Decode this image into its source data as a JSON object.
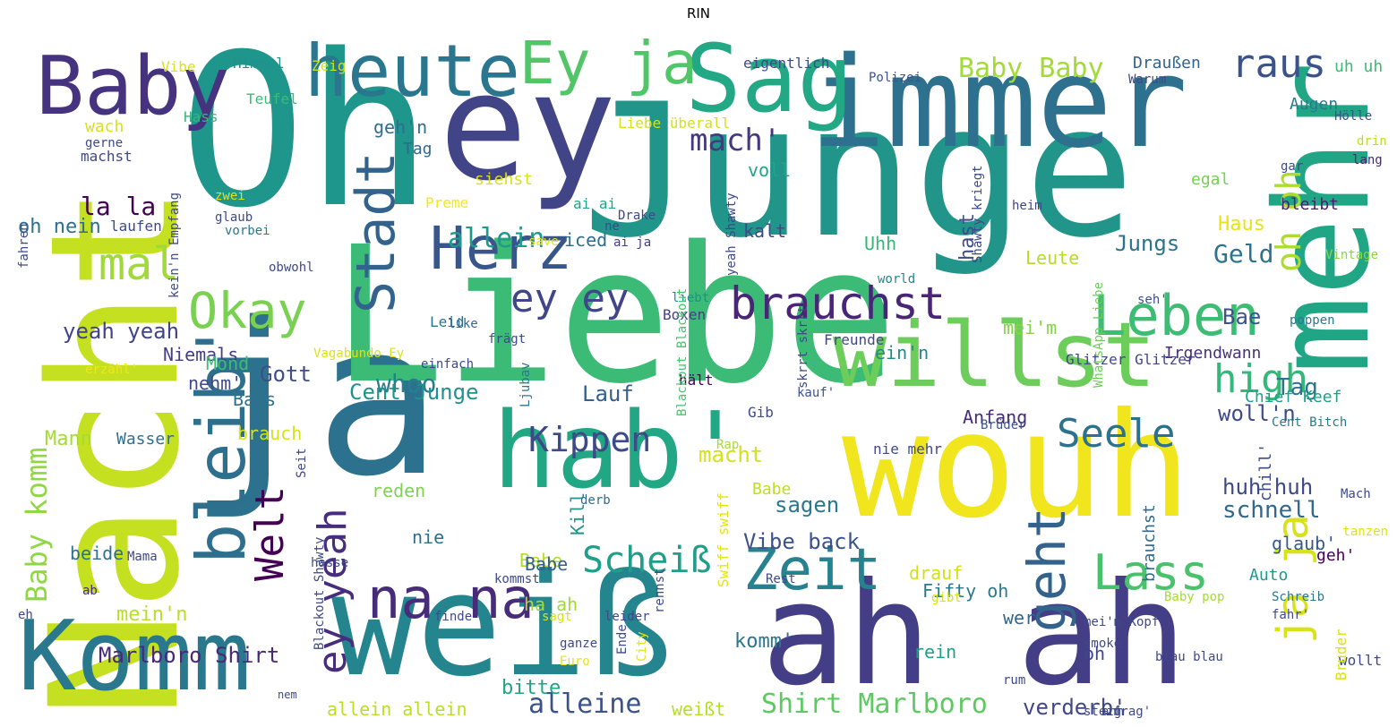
{
  "title": "RIN",
  "words": [
    {
      "text": "Oh",
      "color": "#1f968b"
    },
    {
      "text": "Junge",
      "color": "#22958b"
    },
    {
      "text": "ja",
      "color": "#2c728e"
    },
    {
      "text": "Liebe",
      "color": "#3bbb75"
    },
    {
      "text": "Nacht",
      "color": "#c5e021"
    },
    {
      "text": "ey",
      "color": "#414487"
    },
    {
      "text": "weiß",
      "color": "#25858e"
    },
    {
      "text": "ah ah",
      "color": "#433e85"
    },
    {
      "text": "wouh",
      "color": "#f1e51d"
    },
    {
      "text": "immer",
      "color": "#2d718e"
    },
    {
      "text": "mehr",
      "color": "#21a685"
    },
    {
      "text": "hab'",
      "color": "#22a785"
    },
    {
      "text": "willst",
      "color": "#6ccd5a"
    },
    {
      "text": "Komm",
      "color": "#2a788e"
    },
    {
      "text": "Sag",
      "color": "#22a884"
    },
    {
      "text": "heute",
      "color": "#2a768e"
    },
    {
      "text": "Baby",
      "color": "#46337f"
    },
    {
      "text": "Ey ja",
      "color": "#52c569"
    },
    {
      "text": "bleib'",
      "color": "#2e6f8e"
    },
    {
      "text": "Herz",
      "color": "#39568c"
    },
    {
      "text": "Leben",
      "color": "#3dbc74"
    },
    {
      "text": "Zeit",
      "color": "#26828e"
    },
    {
      "text": "na na",
      "color": "#472c7a"
    },
    {
      "text": "Okay",
      "color": "#7ad151"
    },
    {
      "text": "Stadt",
      "color": "#33638d"
    },
    {
      "text": "geht",
      "color": "#33638d"
    },
    {
      "text": "brauchst",
      "color": "#482576"
    },
    {
      "text": "mal",
      "color": "#a0da39"
    },
    {
      "text": "Welt",
      "color": "#440154"
    },
    {
      "text": "Seele",
      "color": "#2c728e"
    },
    {
      "text": "Lass",
      "color": "#4ac16d"
    },
    {
      "text": "ey yeah",
      "color": "#472d7b"
    },
    {
      "text": "Scheiß",
      "color": "#1f9e89"
    },
    {
      "text": "ja ja",
      "color": "#d8e219"
    },
    {
      "text": "Kippen",
      "color": "#3e4989"
    },
    {
      "text": "raus",
      "color": "#3b528b"
    },
    {
      "text": "ey ey",
      "color": "#404688"
    },
    {
      "text": "oh oh",
      "color": "#addc30"
    },
    {
      "text": "Baby komm",
      "color": "#8fd744"
    },
    {
      "text": "high",
      "color": "#35b779"
    },
    {
      "text": "mach'",
      "color": "#453882"
    },
    {
      "text": "Baby Baby",
      "color": "#a2da37"
    },
    {
      "text": "Shirt Marlboro",
      "color": "#5ec962"
    },
    {
      "text": "Marlboro Shirt",
      "color": "#482878"
    },
    {
      "text": "allein",
      "color": "#1f9a8a"
    },
    {
      "text": "alleine",
      "color": "#3b528b"
    },
    {
      "text": "Geld",
      "color": "#2c738e"
    },
    {
      "text": "whoo",
      "color": "#277f8e"
    },
    {
      "text": "Tag",
      "color": "#2a768e"
    },
    {
      "text": "Vibe back",
      "color": "#3b528b"
    },
    {
      "text": "huh huh",
      "color": "#3e4989"
    },
    {
      "text": "schnell",
      "color": "#31688e"
    },
    {
      "text": "sagen",
      "color": "#2a788e"
    },
    {
      "text": "la la",
      "color": "#440154"
    },
    {
      "text": "Jungs",
      "color": "#2b748e"
    },
    {
      "text": "Bae",
      "color": "#3b528b"
    },
    {
      "text": "verderb'",
      "color": "#3f4788"
    },
    {
      "text": "woll'n",
      "color": "#3e4a89"
    },
    {
      "text": "Lauf",
      "color": "#355f8d"
    },
    {
      "text": "Gott",
      "color": "#3d4e8a"
    },
    {
      "text": "yeah yeah",
      "color": "#414487"
    },
    {
      "text": "Cent Junge",
      "color": "#21918c"
    },
    {
      "text": "mein'n",
      "color": "#b8de29"
    },
    {
      "text": "Mann",
      "color": "#a5db36"
    },
    {
      "text": "macht",
      "color": "#d2e21b"
    },
    {
      "text": "bitte",
      "color": "#20a386"
    },
    {
      "text": "komm'",
      "color": "#2a768e"
    },
    {
      "text": "Babe",
      "color": "#b0dd2f"
    },
    {
      "text": "brauch",
      "color": "#d5e21a"
    },
    {
      "text": "nehm'",
      "color": "#3e4a89"
    },
    {
      "text": "Niemals",
      "color": "#433e85"
    },
    {
      "text": "Mond",
      "color": "#3bbb75"
    },
    {
      "text": "Bass",
      "color": "#2c728e"
    },
    {
      "text": "hast",
      "color": "#3e4a89"
    },
    {
      "text": "Haus",
      "color": "#e5e419"
    },
    {
      "text": "Leute",
      "color": "#b5de2b"
    },
    {
      "text": "Uhh",
      "color": "#35b779"
    },
    {
      "text": "kalt",
      "color": "#3e4989"
    },
    {
      "text": "voll",
      "color": "#20a486"
    },
    {
      "text": "iced",
      "color": "#2e6e8e"
    },
    {
      "text": "ein'n",
      "color": "#24868e"
    },
    {
      "text": "mei'm",
      "color": "#84d44b"
    },
    {
      "text": "Anfang",
      "color": "#472c7a"
    },
    {
      "text": "Kill",
      "color": "#1f958b"
    },
    {
      "text": "drauf",
      "color": "#d0e11c"
    },
    {
      "text": "Fifty oh",
      "color": "#297a8e"
    },
    {
      "text": "wer",
      "color": "#31668e"
    },
    {
      "text": "rein",
      "color": "#1fa088"
    },
    {
      "text": "oh",
      "color": "#404688"
    },
    {
      "text": "nie",
      "color": "#2e6f8e"
    },
    {
      "text": "reden",
      "color": "#81d34d"
    },
    {
      "text": "beide",
      "color": "#2d718e"
    },
    {
      "text": "Babe",
      "color": "#34608d"
    },
    {
      "text": "ha ah",
      "color": "#a2da37"
    },
    {
      "text": "allein allein",
      "color": "#bade28"
    },
    {
      "text": "weißt",
      "color": "#b5de2b"
    },
    {
      "text": "Wasser",
      "color": "#2d718e"
    },
    {
      "text": "Augen",
      "color": "#29798e"
    },
    {
      "text": "Draußen",
      "color": "#32648e"
    },
    {
      "text": "Tag",
      "color": "#31688e"
    },
    {
      "text": "geh'n",
      "color": "#2e6e8e"
    },
    {
      "text": "siehst",
      "color": "#d8e219"
    },
    {
      "text": "oh nein",
      "color": "#2e6f8e"
    },
    {
      "text": "wach",
      "color": "#d8e219"
    },
    {
      "text": "uh uh",
      "color": "#3bbb75"
    },
    {
      "text": "egal",
      "color": "#75d054"
    },
    {
      "text": "bleibt",
      "color": "#481f70"
    },
    {
      "text": "glaub'",
      "color": "#38588c"
    },
    {
      "text": "geh'",
      "color": "#440154"
    },
    {
      "text": "Auto",
      "color": "#1e9b8a"
    },
    {
      "text": "chill'",
      "color": "#3e4c8a"
    },
    {
      "text": "brauchst",
      "color": "#31688e"
    },
    {
      "text": "Babe",
      "color": "#bddf26"
    },
    {
      "text": "Chief Keef",
      "color": "#1fa188"
    },
    {
      "text": "Freunde",
      "color": "#3f4889"
    },
    {
      "text": "Glitzer Glitzer",
      "color": "#3f4788"
    },
    {
      "text": "Irgendwann",
      "color": "#46327e"
    },
    {
      "text": "Swiff swiff",
      "color": "#e2e418"
    },
    {
      "text": "Gib",
      "color": "#3e4989"
    },
    {
      "text": "Brüder",
      "color": "#3b528b"
    },
    {
      "text": "nie mehr",
      "color": "#3e4a89"
    },
    {
      "text": "kauf'",
      "color": "#3b528b"
    },
    {
      "text": "hält",
      "color": "#440154"
    },
    {
      "text": "Rap",
      "color": "#a8db34"
    },
    {
      "text": "derb",
      "color": "#31688e"
    },
    {
      "text": "einfach",
      "color": "#3e4989"
    },
    {
      "text": "Leid",
      "color": "#2d718e"
    },
    {
      "text": "like",
      "color": "#31688e"
    },
    {
      "text": "Boxen",
      "color": "#424086"
    },
    {
      "text": "liebt",
      "color": "#218f8d"
    },
    {
      "text": "seh'",
      "color": "#3b528b"
    },
    {
      "text": "poppen",
      "color": "#2a788e"
    },
    {
      "text": "Vintage",
      "color": "#8bd646"
    },
    {
      "text": "world",
      "color": "#24878e"
    },
    {
      "text": "heim",
      "color": "#3f4788"
    },
    {
      "text": "lang",
      "color": "#482475"
    },
    {
      "text": "drin",
      "color": "#b8de29"
    },
    {
      "text": "gar",
      "color": "#3e4989"
    },
    {
      "text": "Hölle",
      "color": "#3b528b"
    },
    {
      "text": "Warum",
      "color": "#3f4788"
    },
    {
      "text": "Polizei",
      "color": "#3b528b"
    },
    {
      "text": "eigentlich",
      "color": "#3e4989"
    },
    {
      "text": "Liebe überall",
      "color": "#d2e21b"
    },
    {
      "text": "Teufel",
      "color": "#3bbb75"
    },
    {
      "text": "Hass",
      "color": "#35b779"
    },
    {
      "text": "Himmel",
      "color": "#21918c"
    },
    {
      "text": "Zeig",
      "color": "#c8e020"
    },
    {
      "text": "Vibe",
      "color": "#d8e219"
    },
    {
      "text": "machst",
      "color": "#3e4989"
    },
    {
      "text": "gerne",
      "color": "#3e4a89"
    },
    {
      "text": "zwei",
      "color": "#e1e319"
    },
    {
      "text": "glaub",
      "color": "#3e4989"
    },
    {
      "text": "laufen",
      "color": "#3e4989"
    },
    {
      "text": "vorbei",
      "color": "#2a788e"
    },
    {
      "text": "Preme",
      "color": "#f4e61e"
    },
    {
      "text": "ai ai",
      "color": "#20a486"
    },
    {
      "text": "Drake",
      "color": "#3e4989"
    },
    {
      "text": "ne",
      "color": "#3e4989"
    },
    {
      "text": "ai ja",
      "color": "#433e85"
    },
    {
      "text": "save",
      "color": "#e2e418"
    },
    {
      "text": "obwohl",
      "color": "#3e4989"
    },
    {
      "text": "frägt",
      "color": "#3e4989"
    },
    {
      "text": "erzähl'",
      "color": "#f1e51d"
    },
    {
      "text": "Ljubav",
      "color": "#29798e"
    },
    {
      "text": "hasse",
      "color": "#3e4989"
    },
    {
      "text": "Mama",
      "color": "#3e4989"
    },
    {
      "text": "ab",
      "color": "#482878"
    },
    {
      "text": "finde",
      "color": "#3e4989"
    },
    {
      "text": "sagt",
      "color": "#d8e219"
    },
    {
      "text": "leider",
      "color": "#3e4989"
    },
    {
      "text": "ganze",
      "color": "#3e4989"
    },
    {
      "text": "Euro",
      "color": "#e5e419"
    },
    {
      "text": "City",
      "color": "#e2e418"
    },
    {
      "text": "Ende",
      "color": "#3e4989"
    },
    {
      "text": "gibt",
      "color": "#d2e21b"
    },
    {
      "text": "mei'm Kopf",
      "color": "#3e4989"
    },
    {
      "text": "smoke",
      "color": "#3e4989"
    },
    {
      "text": "Baby pop",
      "color": "#a5db36"
    },
    {
      "text": "blau blau",
      "color": "#3e4989"
    },
    {
      "text": "rum",
      "color": "#3e4989"
    },
    {
      "text": "steig",
      "color": "#3e4989"
    },
    {
      "text": "ahh",
      "color": "#3e4989"
    },
    {
      "text": "frag'",
      "color": "#3e4989"
    },
    {
      "text": "wollt",
      "color": "#3e4989"
    },
    {
      "text": "Bruder",
      "color": "#d8e219"
    },
    {
      "text": "fahr'",
      "color": "#3e4989"
    },
    {
      "text": "Schreib",
      "color": "#2a788e"
    },
    {
      "text": "tanzen",
      "color": "#dde318"
    },
    {
      "text": "Mach",
      "color": "#3e4989"
    },
    {
      "text": "Cent Bitch",
      "color": "#29798e"
    },
    {
      "text": "Rest",
      "color": "#3e4989"
    },
    {
      "text": "kommst",
      "color": "#3e4989"
    },
    {
      "text": "eh",
      "color": "#3e4989"
    },
    {
      "text": "fahren",
      "color": "#3e4989"
    },
    {
      "text": "kein'n Empfang",
      "color": "#3e4989"
    },
    {
      "text": "Seit",
      "color": "#3e4989"
    },
    {
      "text": "Blackout Shawty",
      "color": "#3e4989"
    },
    {
      "text": "Blackout Blackout",
      "color": "#4ac16d"
    },
    {
      "text": "yeah Shawty",
      "color": "#3e4989"
    },
    {
      "text": "skrrt skrrt",
      "color": "#3e4989"
    },
    {
      "text": "WhatsApp Liebe",
      "color": "#6ccd5a"
    },
    {
      "text": "Shawty kriegt",
      "color": "#3e4989"
    },
    {
      "text": "rennst",
      "color": "#3e4989"
    },
    {
      "text": "Vagabundo Ey",
      "color": "#dde318"
    },
    {
      "text": "nem",
      "color": "#3e4989"
    }
  ]
}
